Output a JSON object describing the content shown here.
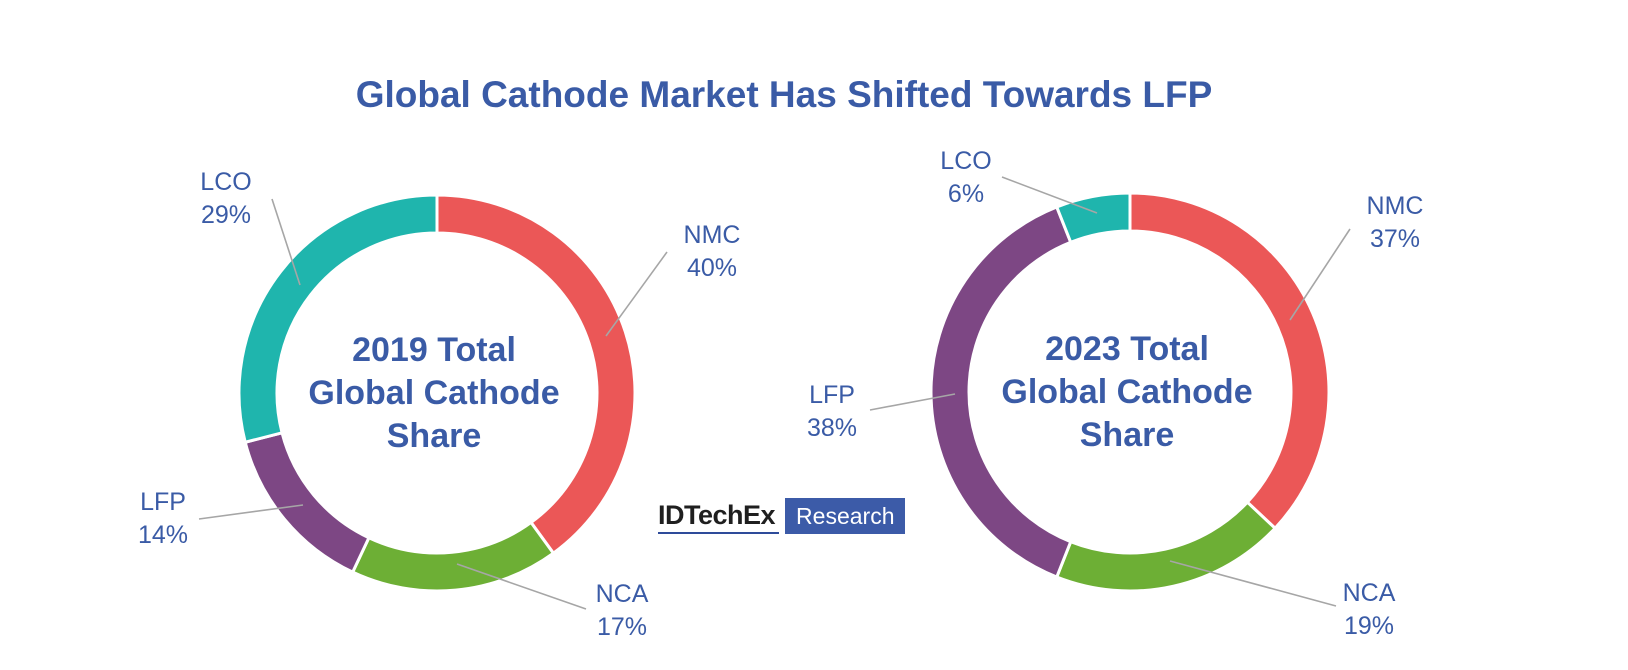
{
  "title": "Global Cathode Market Has Shifted Towards LFP",
  "logo": {
    "brand": "IDTechEx",
    "tag": "Research"
  },
  "colors": {
    "title": "#3a5ba6",
    "label": "#3a5ba6",
    "leader": "#a6a6a6",
    "NMC": "#eb5757",
    "NCA": "#6daf35",
    "LFP": "#7d4784",
    "LCO": "#1fb5ad"
  },
  "chart_data": [
    {
      "type": "pie",
      "center_label": [
        "2019 Total",
        "Global Cathode",
        "Share"
      ],
      "categories": [
        "NMC",
        "NCA",
        "LFP",
        "LCO"
      ],
      "values": [
        40,
        17,
        14,
        29
      ],
      "value_labels": [
        "40%",
        "17%",
        "14%",
        "29%"
      ]
    },
    {
      "type": "pie",
      "center_label": [
        "2023 Total",
        "Global Cathode",
        "Share"
      ],
      "categories": [
        "NMC",
        "NCA",
        "LFP",
        "LCO"
      ],
      "values": [
        37,
        19,
        38,
        6
      ],
      "value_labels": [
        "37%",
        "19%",
        "38%",
        "6%"
      ]
    }
  ]
}
